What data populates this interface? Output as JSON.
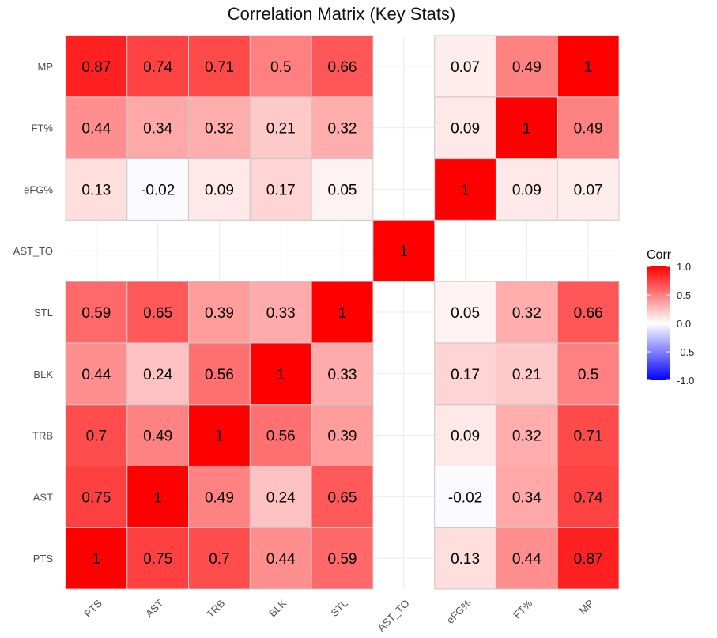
{
  "chart_data": {
    "type": "heatmap",
    "title": "Correlation Matrix (Key Stats)",
    "xlabel": "",
    "ylabel": "",
    "x_categories": [
      "PTS",
      "AST",
      "TRB",
      "BLK",
      "STL",
      "AST_TO",
      "eFG%",
      "FT%",
      "MP"
    ],
    "y_categories_bottom_to_top": [
      "PTS",
      "AST",
      "TRB",
      "BLK",
      "STL",
      "AST_TO",
      "eFG%",
      "FT%",
      "MP"
    ],
    "matrix": [
      [
        1,
        0.75,
        0.7,
        0.44,
        0.59,
        null,
        0.13,
        0.44,
        0.87
      ],
      [
        0.75,
        1,
        0.49,
        0.24,
        0.65,
        null,
        -0.02,
        0.34,
        0.74
      ],
      [
        0.7,
        0.49,
        1,
        0.56,
        0.39,
        null,
        0.09,
        0.32,
        0.71
      ],
      [
        0.44,
        0.24,
        0.56,
        1,
        0.33,
        null,
        0.17,
        0.21,
        0.5
      ],
      [
        0.59,
        0.65,
        0.39,
        0.33,
        1,
        null,
        0.05,
        0.32,
        0.66
      ],
      [
        null,
        null,
        null,
        null,
        null,
        1,
        null,
        null,
        null
      ],
      [
        0.13,
        -0.02,
        0.09,
        0.17,
        0.05,
        null,
        1,
        0.09,
        0.07
      ],
      [
        0.44,
        0.34,
        0.32,
        0.21,
        0.32,
        null,
        0.09,
        1,
        0.49
      ],
      [
        0.87,
        0.74,
        0.71,
        0.5,
        0.66,
        null,
        0.07,
        0.49,
        1
      ]
    ],
    "color_scale": {
      "low": "#0000ff",
      "mid": "#ffffff",
      "high": "#ff0000",
      "limits": [
        -1,
        1
      ]
    },
    "legend": {
      "title": "Corr",
      "ticks": [
        1.0,
        0.5,
        0.0,
        -0.5,
        -1.0
      ],
      "tick_labels": [
        "1.0",
        "0.5",
        "0.0",
        "-0.5",
        "-1.0"
      ],
      "position": "right"
    },
    "grid": true,
    "x_tick_rotation": "45 degrees"
  }
}
